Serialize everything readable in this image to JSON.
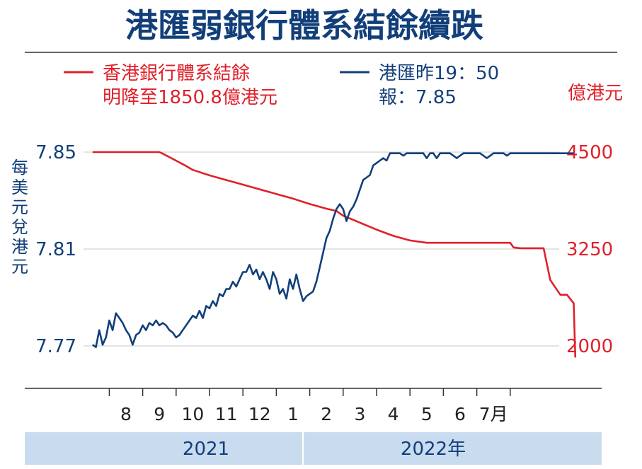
{
  "chart_data": {
    "type": "line",
    "title": "港匯弱銀行體系結餘續跌",
    "legend": [
      {
        "key": "balance",
        "line1": "香港銀行體系結餘",
        "line2": "明降至1850.8億港元"
      },
      {
        "key": "hkd",
        "line1": "港匯昨19：50",
        "line2": "報：7.85"
      }
    ],
    "left_axis": {
      "label": "每美元兌港元",
      "ticks": [
        7.85,
        7.81,
        7.77
      ],
      "tick_labels": [
        "7.85",
        "7.81",
        "7.77"
      ],
      "range": [
        7.77,
        7.85
      ]
    },
    "right_axis": {
      "label": "億港元",
      "ticks": [
        4500,
        3250,
        2000
      ],
      "tick_labels": [
        "4500",
        "3250",
        "2000"
      ],
      "range": [
        2000,
        4500
      ]
    },
    "x_months": [
      "8",
      "9",
      "10",
      "11",
      "12",
      "1",
      "2",
      "3",
      "4",
      "5",
      "6",
      "7月"
    ],
    "x_years": [
      "2021",
      "2022年"
    ],
    "series": [
      {
        "name": "香港銀行體系結餘",
        "axis": "right",
        "color": "#e0202a",
        "x": [
          7.0,
          7.5,
          8.0,
          8.5,
          9.0,
          9.1,
          9.5,
          9.8,
          10.0,
          10.5,
          11.0,
          11.5,
          12.0,
          12.5,
          13.0,
          13.5,
          14.0,
          14.3,
          14.5,
          15.0,
          15.5,
          16.0,
          16.5,
          17.0,
          17.5,
          18.0,
          18.5,
          19.0,
          19.5,
          19.6,
          19.8,
          20.0,
          20.2,
          20.5,
          20.7,
          21.0,
          21.2,
          21.4,
          21.45
        ],
        "y": [
          4500,
          4500,
          4500,
          4500,
          4500,
          4480,
          4390,
          4320,
          4270,
          4200,
          4140,
          4080,
          4020,
          3960,
          3900,
          3830,
          3770,
          3740,
          3680,
          3590,
          3500,
          3420,
          3360,
          3330,
          3330,
          3330,
          3330,
          3330,
          3330,
          3270,
          3260,
          3260,
          3260,
          3260,
          2850,
          2660,
          2660,
          2550,
          1850.8
        ]
      },
      {
        "name": "港匯",
        "axis": "left",
        "color": "#123f7a",
        "x": [
          7.0,
          7.1,
          7.2,
          7.3,
          7.4,
          7.5,
          7.6,
          7.7,
          7.8,
          7.9,
          8.0,
          8.1,
          8.2,
          8.3,
          8.4,
          8.5,
          8.6,
          8.7,
          8.8,
          8.9,
          9.0,
          9.1,
          9.2,
          9.3,
          9.4,
          9.5,
          9.6,
          9.7,
          9.8,
          9.9,
          10.0,
          10.1,
          10.2,
          10.3,
          10.4,
          10.5,
          10.6,
          10.7,
          10.8,
          10.9,
          11.0,
          11.1,
          11.2,
          11.3,
          11.4,
          11.5,
          11.6,
          11.7,
          11.8,
          11.9,
          12.0,
          12.1,
          12.2,
          12.3,
          12.4,
          12.5,
          12.6,
          12.7,
          12.8,
          12.9,
          13.0,
          13.1,
          13.2,
          13.3,
          13.4,
          13.5,
          13.6,
          13.7,
          13.8,
          13.9,
          14.0,
          14.1,
          14.2,
          14.3,
          14.4,
          14.5,
          14.6,
          14.7,
          14.8,
          14.9,
          15.0,
          15.1,
          15.2,
          15.3,
          15.4,
          15.5,
          15.6,
          15.7,
          15.8,
          15.9,
          16.0,
          16.1,
          16.2,
          16.3,
          16.4,
          16.5,
          16.6,
          16.7,
          16.8,
          16.9,
          17.0,
          17.1,
          17.2,
          17.3,
          17.4,
          17.5,
          17.6,
          17.7,
          17.8,
          17.9,
          18.0,
          18.1,
          18.2,
          18.3,
          18.4,
          18.5,
          18.6,
          18.7,
          18.8,
          18.9,
          19.0,
          19.1,
          19.2,
          19.3,
          19.4,
          19.5,
          19.6,
          19.7,
          19.8,
          19.9,
          20.0,
          20.1,
          20.2,
          20.3,
          20.4,
          20.5,
          20.6,
          20.7,
          20.8,
          20.9,
          21.0,
          21.1,
          21.2,
          21.3,
          21.4
        ],
        "y": [
          7.7705,
          7.7695,
          7.7765,
          7.7705,
          7.7735,
          7.7805,
          7.7765,
          7.7835,
          7.7815,
          7.7795,
          7.7765,
          7.7745,
          7.7705,
          7.7745,
          7.7755,
          7.7785,
          7.7765,
          7.7795,
          7.7785,
          7.7805,
          7.7785,
          7.7795,
          7.7785,
          7.7765,
          7.7755,
          7.7735,
          7.7745,
          7.7765,
          7.7785,
          7.7805,
          7.7825,
          7.7815,
          7.7845,
          7.7815,
          7.7865,
          7.7855,
          7.7885,
          7.7865,
          7.7915,
          7.7905,
          7.7935,
          7.7935,
          7.7965,
          7.7945,
          7.7975,
          7.8005,
          7.8005,
          7.8035,
          7.7995,
          7.8015,
          7.7975,
          7.8005,
          7.7975,
          7.7935,
          7.8005,
          7.7975,
          7.7915,
          7.7935,
          7.7895,
          7.7975,
          7.7935,
          7.7995,
          7.7935,
          7.7885,
          7.7905,
          7.7915,
          7.7925,
          7.7965,
          7.8025,
          7.8085,
          7.8145,
          7.8175,
          7.8225,
          7.8265,
          7.8285,
          7.8265,
          7.8215,
          7.8255,
          7.8275,
          7.8305,
          7.8345,
          7.8385,
          7.8395,
          7.8405,
          7.8445,
          7.8455,
          7.8465,
          7.8475,
          7.8465,
          7.8495,
          7.8495,
          7.8495,
          7.8495,
          7.8485,
          7.8495,
          7.8495,
          7.8495,
          7.8495,
          7.8495,
          7.8495,
          7.8475,
          7.8495,
          7.8495,
          7.8475,
          7.8495,
          7.8495,
          7.8495,
          7.8495,
          7.8485,
          7.8475,
          7.8485,
          7.8495,
          7.8495,
          7.8495,
          7.8495,
          7.8495,
          7.8495,
          7.8485,
          7.8475,
          7.8485,
          7.8495,
          7.8495,
          7.8495,
          7.8495,
          7.8485,
          7.8495,
          7.8495,
          7.8495,
          7.8495,
          7.8495,
          7.8495,
          7.8495,
          7.8495,
          7.8495,
          7.8495,
          7.8495,
          7.8495,
          7.8495,
          7.8495,
          7.8495,
          7.8495,
          7.8495,
          7.8495,
          7.8495,
          7.8495
        ]
      }
    ],
    "grid": {
      "horizontal": true,
      "vertical": false
    },
    "colors": {
      "title": "#123f7a",
      "balance": "#e0202a",
      "hkd": "#123f7a",
      "year_band": "#c9dcef",
      "grid": "#c8c8c8"
    }
  }
}
